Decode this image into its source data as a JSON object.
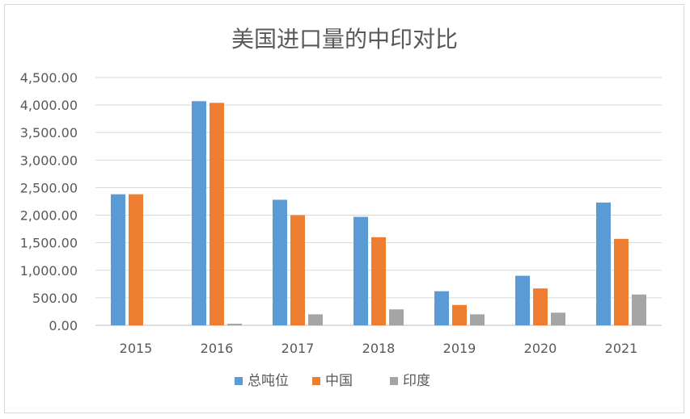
{
  "chart_data": {
    "type": "bar",
    "title": "美国进口量的中印对比",
    "categories": [
      "2015",
      "2016",
      "2017",
      "2018",
      "2019",
      "2020",
      "2021"
    ],
    "series": [
      {
        "name": "总吨位",
        "color": "#5b9bd5",
        "values": [
          2380,
          4070,
          2280,
          1970,
          620,
          900,
          2230
        ]
      },
      {
        "name": "中国",
        "color": "#ed7d31",
        "values": [
          2380,
          4040,
          2000,
          1600,
          370,
          670,
          1570
        ]
      },
      {
        "name": "印度",
        "color": "#a5a5a5",
        "values": [
          0,
          30,
          200,
          290,
          200,
          230,
          560
        ]
      }
    ],
    "ylim": [
      0,
      4500
    ],
    "yticks": [
      {
        "value": 0,
        "label": "0.00"
      },
      {
        "value": 500,
        "label": "500.00"
      },
      {
        "value": 1000,
        "label": "1,000.00"
      },
      {
        "value": 1500,
        "label": "1,500.00"
      },
      {
        "value": 2000,
        "label": "2,000.00"
      },
      {
        "value": 2500,
        "label": "2,500.00"
      },
      {
        "value": 3000,
        "label": "3,000.00"
      },
      {
        "value": 3500,
        "label": "3,500.00"
      },
      {
        "value": 4000,
        "label": "4,000.00"
      },
      {
        "value": 4500,
        "label": "4,500.00"
      }
    ],
    "grid": true,
    "legend_position": "bottom"
  }
}
